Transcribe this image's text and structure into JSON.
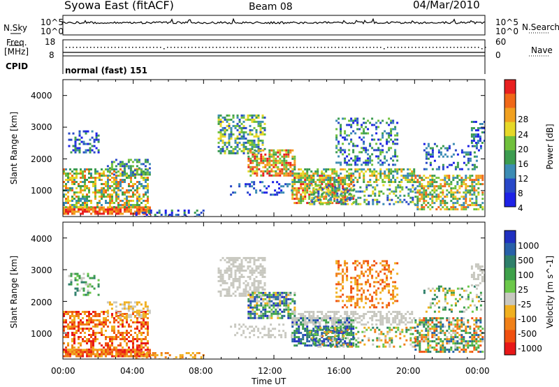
{
  "header": {
    "station": "Syowa East (fitACF)",
    "beam": "Beam 08",
    "date": "04/Mar/2010"
  },
  "nsky_panel": {
    "left_label": "N.Sky",
    "right_label": "N.Search",
    "left_ticks": [
      "10^5",
      "10^0"
    ],
    "right_ticks": [
      "10^5",
      "10^0"
    ]
  },
  "freq_panel": {
    "left_label_1": "Freq.",
    "left_label_2": "[MHz]",
    "right_label": "Nave",
    "left_ticks": [
      "18",
      "8"
    ],
    "right_ticks": [
      "60",
      "0"
    ]
  },
  "cpid_panel": {
    "label": "CPID",
    "mode_text": "normal (fast) 151"
  },
  "chart_data": [
    {
      "type": "heatmap",
      "title": "",
      "ylabel": "Slant Range [km]",
      "xlabel": "",
      "ylim": [
        180,
        4500
      ],
      "xlim": [
        "00:00",
        "00:00"
      ],
      "y_ticks": [
        "1000",
        "2000",
        "3000",
        "4000"
      ],
      "colorbar_label": "Power [dB]",
      "colorbar_ticks": [
        "4",
        "8",
        "12",
        "16",
        "20",
        "24",
        "28"
      ],
      "colorbar_colors": [
        "#1e22e6",
        "#2848c8",
        "#3c8cb4",
        "#3c9c50",
        "#70c03c",
        "#e6d828",
        "#f0a020",
        "#f06818",
        "#e82020"
      ]
    },
    {
      "type": "heatmap",
      "title": "",
      "ylabel": "Slant Range [km]",
      "xlabel": "Time UT",
      "ylim": [
        180,
        4500
      ],
      "y_ticks": [
        "1000",
        "2000",
        "3000",
        "4000"
      ],
      "x_ticks": [
        "00:00",
        "04:00",
        "08:00",
        "12:00",
        "16:00",
        "20:00",
        "00:00"
      ],
      "colorbar_label": "Velocity [m s^-1]",
      "colorbar_ticks": [
        "1000",
        "500",
        "100",
        "25",
        "-25",
        "-100",
        "-500",
        "-1000"
      ],
      "colorbar_colors": [
        "#2030c0",
        "#2860a8",
        "#2e7f6a",
        "#3ea04a",
        "#6cc84a",
        "#c8c8c0",
        "#f0b020",
        "#f08018",
        "#f05010",
        "#e81818"
      ]
    }
  ]
}
